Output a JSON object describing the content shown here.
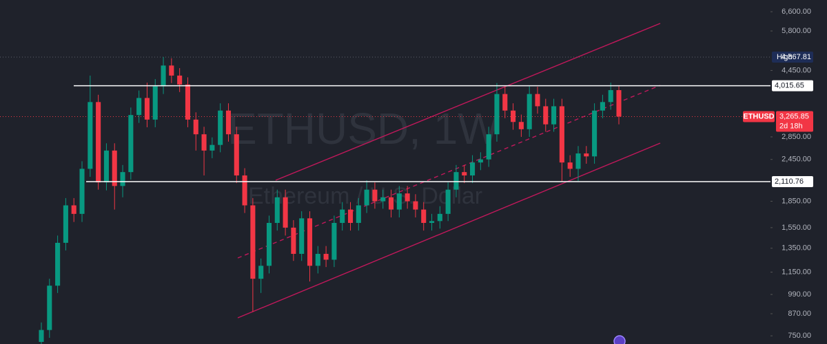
{
  "chart_data": {
    "type": "candlestick",
    "title": "ETHUSD, 1W",
    "subtitle": "Ethereum / U.S. Dollar",
    "log_scale": true,
    "grid": false,
    "up_color": "#089981",
    "down_color": "#f23645",
    "ylim": [
      710,
      7140
    ],
    "yticks": [
      {
        "value": 6600,
        "label": "6,600.00"
      },
      {
        "value": 5800,
        "label": "5,800.00"
      },
      {
        "value": 4450,
        "label": "4,450.00"
      },
      {
        "value": 2850,
        "label": "2,850.00"
      },
      {
        "value": 2450,
        "label": "2,450.00"
      },
      {
        "value": 1850,
        "label": "1,850.00"
      },
      {
        "value": 1550,
        "label": "1,550.00"
      },
      {
        "value": 1350,
        "label": "1,350.00"
      },
      {
        "value": 1150,
        "label": "1,150.00"
      },
      {
        "value": 990,
        "label": "990.00"
      },
      {
        "value": 870,
        "label": "870.00"
      },
      {
        "value": 750,
        "label": "750.00"
      }
    ],
    "open": [
      720,
      780,
      1050,
      1400,
      1800,
      1700,
      2300,
      3600,
      2100,
      2600,
      2050,
      2250,
      3300,
      3700,
      3200,
      4000,
      4600,
      4300,
      4050,
      3200,
      2900,
      2600,
      2700,
      3400,
      2900,
      2200,
      1800,
      1100,
      1200,
      1600,
      1900,
      1550,
      1300,
      1650,
      1200,
      1300,
      1250,
      1600,
      1750,
      1600,
      1800,
      2000,
      1850,
      1900,
      1750,
      1950,
      1850,
      1750,
      1600,
      1620,
      1700,
      2000,
      2250,
      2200,
      2400,
      2450,
      2900,
      3800,
      3400,
      3150,
      3000,
      3800,
      3500,
      3100,
      3500,
      2400,
      2300,
      2550,
      2500,
      3400,
      3600,
      3900
    ],
    "high": [
      820,
      1100,
      1470,
      1890,
      1890,
      2420,
      4300,
      3780,
      2730,
      2730,
      2360,
      3470,
      3890,
      4100,
      4200,
      4870,
      4830,
      4520,
      4250,
      3360,
      3050,
      2840,
      3570,
      3570,
      3050,
      2310,
      1890,
      1260,
      1680,
      2000,
      2000,
      1630,
      1730,
      1730,
      1370,
      1370,
      1680,
      1840,
      1840,
      1890,
      2130,
      2100,
      2000,
      2000,
      2050,
      2050,
      1940,
      1840,
      1700,
      1790,
      2100,
      2360,
      2360,
      2520,
      2570,
      3050,
      4090,
      3990,
      3570,
      3310,
      4000,
      3990,
      3680,
      3680,
      3680,
      2520,
      2680,
      2680,
      3570,
      3780,
      4100,
      4000
    ],
    "low": [
      690,
      740,
      1000,
      1330,
      1610,
      1610,
      2180,
      2000,
      1990,
      1750,
      1900,
      2140,
      3130,
      3040,
      3040,
      3800,
      4090,
      3850,
      3040,
      2600,
      2200,
      2470,
      2570,
      2760,
      2090,
      1710,
      880,
      1000,
      1140,
      1520,
      1470,
      1240,
      1240,
      1080,
      1140,
      1190,
      1190,
      1520,
      1520,
      1520,
      1710,
      1760,
      1760,
      1660,
      1660,
      1760,
      1660,
      1520,
      1520,
      1540,
      1620,
      1900,
      2090,
      2090,
      2280,
      2330,
      2760,
      3230,
      2990,
      2850,
      2850,
      3330,
      2950,
      2950,
      2110,
      2180,
      2120,
      2380,
      2380,
      3230,
      3420,
      3100
    ],
    "close": [
      780,
      1050,
      1400,
      1800,
      1700,
      2300,
      3600,
      2100,
      2600,
      2050,
      2250,
      3300,
      3700,
      3200,
      4000,
      4600,
      4300,
      4050,
      3200,
      2900,
      2600,
      2700,
      3400,
      2900,
      2200,
      1800,
      1100,
      1200,
      1600,
      1900,
      1550,
      1300,
      1650,
      1200,
      1300,
      1250,
      1600,
      1750,
      1600,
      1800,
      2000,
      1850,
      1900,
      1750,
      1950,
      1850,
      1750,
      1600,
      1620,
      1700,
      2000,
      2250,
      2200,
      2400,
      2450,
      2900,
      3800,
      3400,
      3150,
      3000,
      3800,
      3500,
      3100,
      3500,
      2400,
      2300,
      2550,
      2500,
      3400,
      3600,
      3900,
      3265.85
    ],
    "high_marker": {
      "name": "High",
      "value": 4867.81,
      "label": "4,867.81"
    },
    "levels": [
      {
        "value": 4015.65,
        "label": "4,015.65"
      },
      {
        "value": 2110.76,
        "label": "2,110.76"
      }
    ],
    "last_price": {
      "name": "ETHUSD",
      "value": 3265.85,
      "label": "3,265.85",
      "countdown": "2d 18h"
    }
  }
}
